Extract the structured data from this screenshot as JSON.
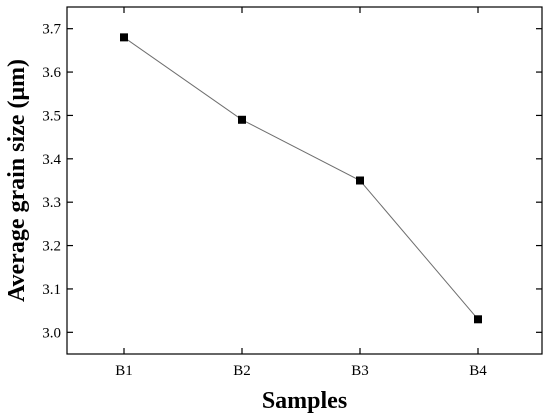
{
  "chart_data": {
    "type": "line",
    "title": "",
    "xlabel": "Samples",
    "ylabel": "Average grain size (μm)",
    "categories": [
      "B1",
      "B2",
      "B3",
      "B4"
    ],
    "series": [
      {
        "values": [
          3.68,
          3.49,
          3.35,
          3.03
        ],
        "color": "#000000",
        "line_color": "#6e6e6e",
        "marker": "square"
      }
    ],
    "ylim": [
      2.95,
      3.75
    ],
    "yticks": [
      "3.0",
      "3.1",
      "3.2",
      "3.3",
      "3.4",
      "3.5",
      "3.6",
      "3.7"
    ],
    "grid": false,
    "legend": "none"
  }
}
